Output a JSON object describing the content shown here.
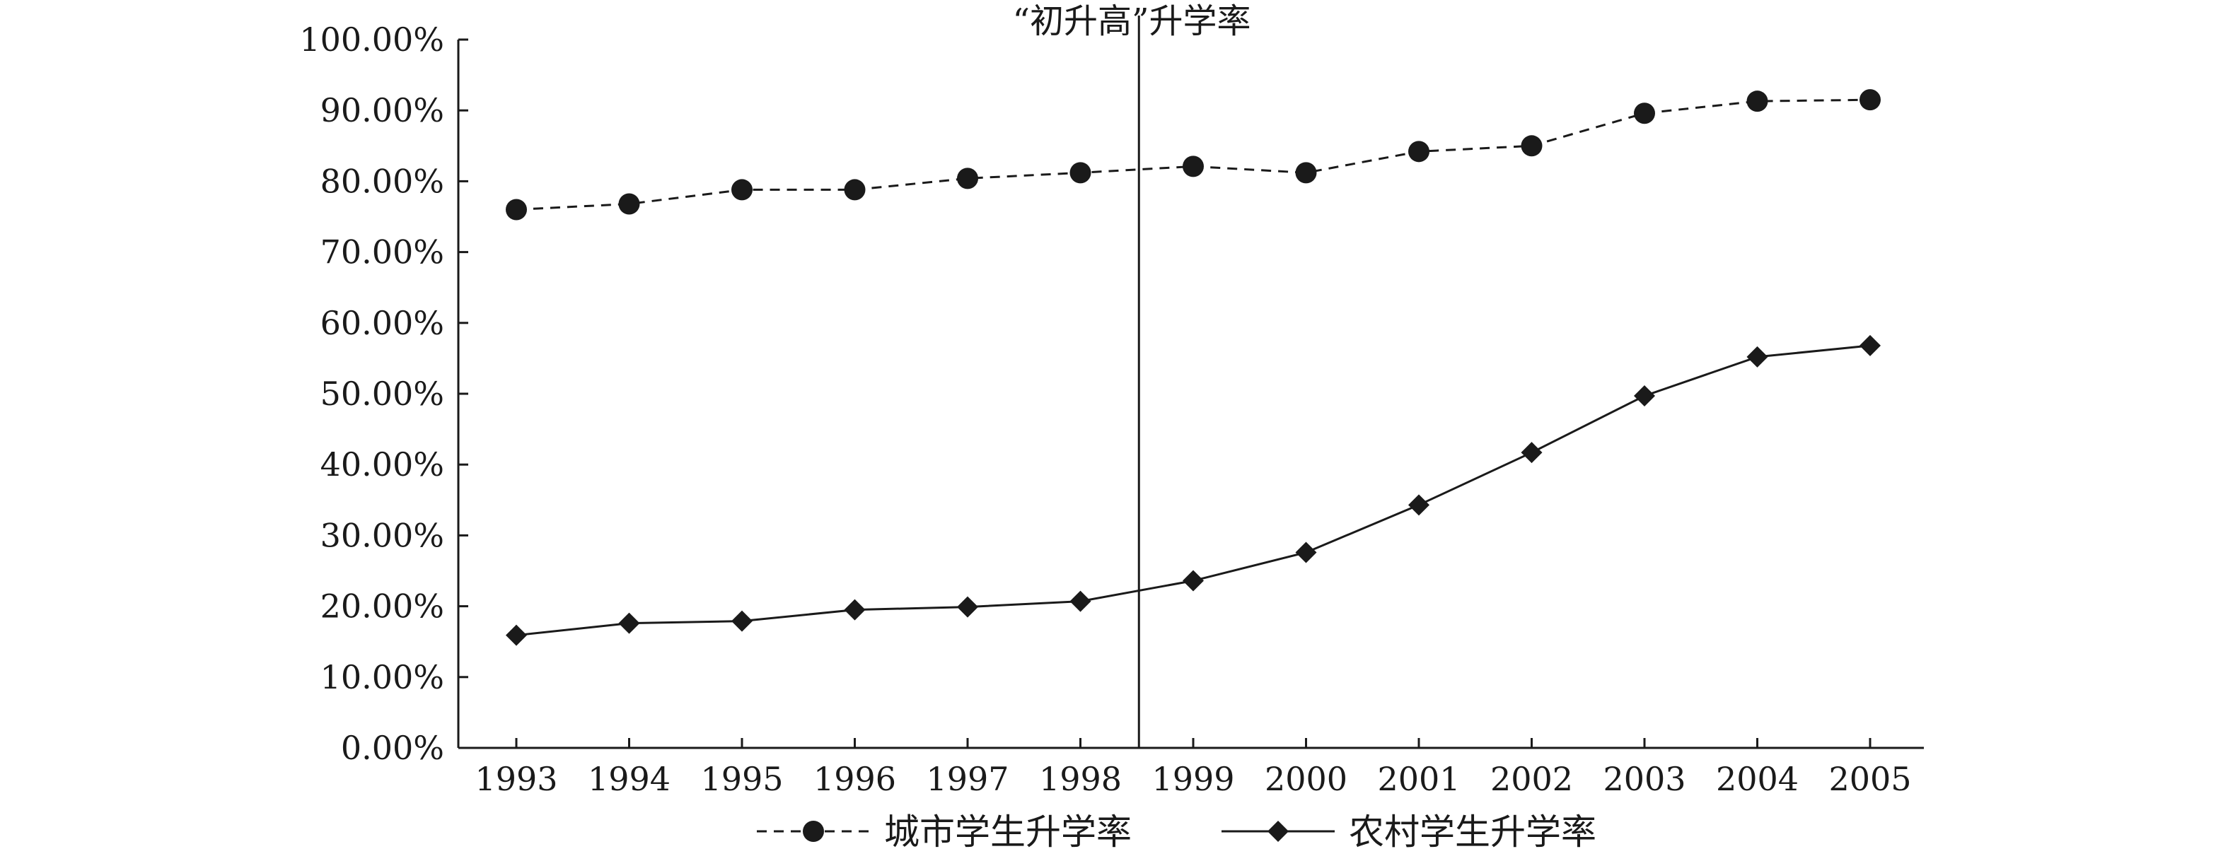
{
  "chart_data": {
    "type": "line",
    "title": "“初升高”升学率",
    "xlabel": "",
    "ylabel": "",
    "categories": [
      "1993",
      "1994",
      "1995",
      "1996",
      "1997",
      "1998",
      "1999",
      "2000",
      "2001",
      "2002",
      "2003",
      "2004",
      "2005"
    ],
    "ylim": [
      0,
      100
    ],
    "yticks": [
      "0.00%",
      "10.00%",
      "20.00%",
      "30.00%",
      "40.00%",
      "50.00%",
      "60.00%",
      "70.00%",
      "80.00%",
      "90.00%",
      "100.00%"
    ],
    "grid": false,
    "legend_position": "bottom",
    "series": [
      {
        "name": "城市学生升学率",
        "line_style": "dashed",
        "marker": "circle",
        "color": "#1a1a1a",
        "values": [
          76.0,
          76.8,
          78.8,
          78.8,
          80.4,
          81.2,
          82.1,
          81.2,
          84.2,
          85.0,
          89.6,
          91.3,
          91.5
        ]
      },
      {
        "name": "农村学生升学率",
        "line_style": "solid",
        "marker": "diamond",
        "color": "#1a1a1a",
        "values": [
          15.9,
          17.6,
          17.9,
          19.5,
          19.9,
          20.7,
          23.6,
          27.6,
          34.3,
          41.7,
          49.7,
          55.2,
          56.8
        ]
      }
    ],
    "annotations": [
      {
        "type": "vertical-line",
        "x_between": [
          "1998",
          "1999"
        ]
      }
    ]
  }
}
